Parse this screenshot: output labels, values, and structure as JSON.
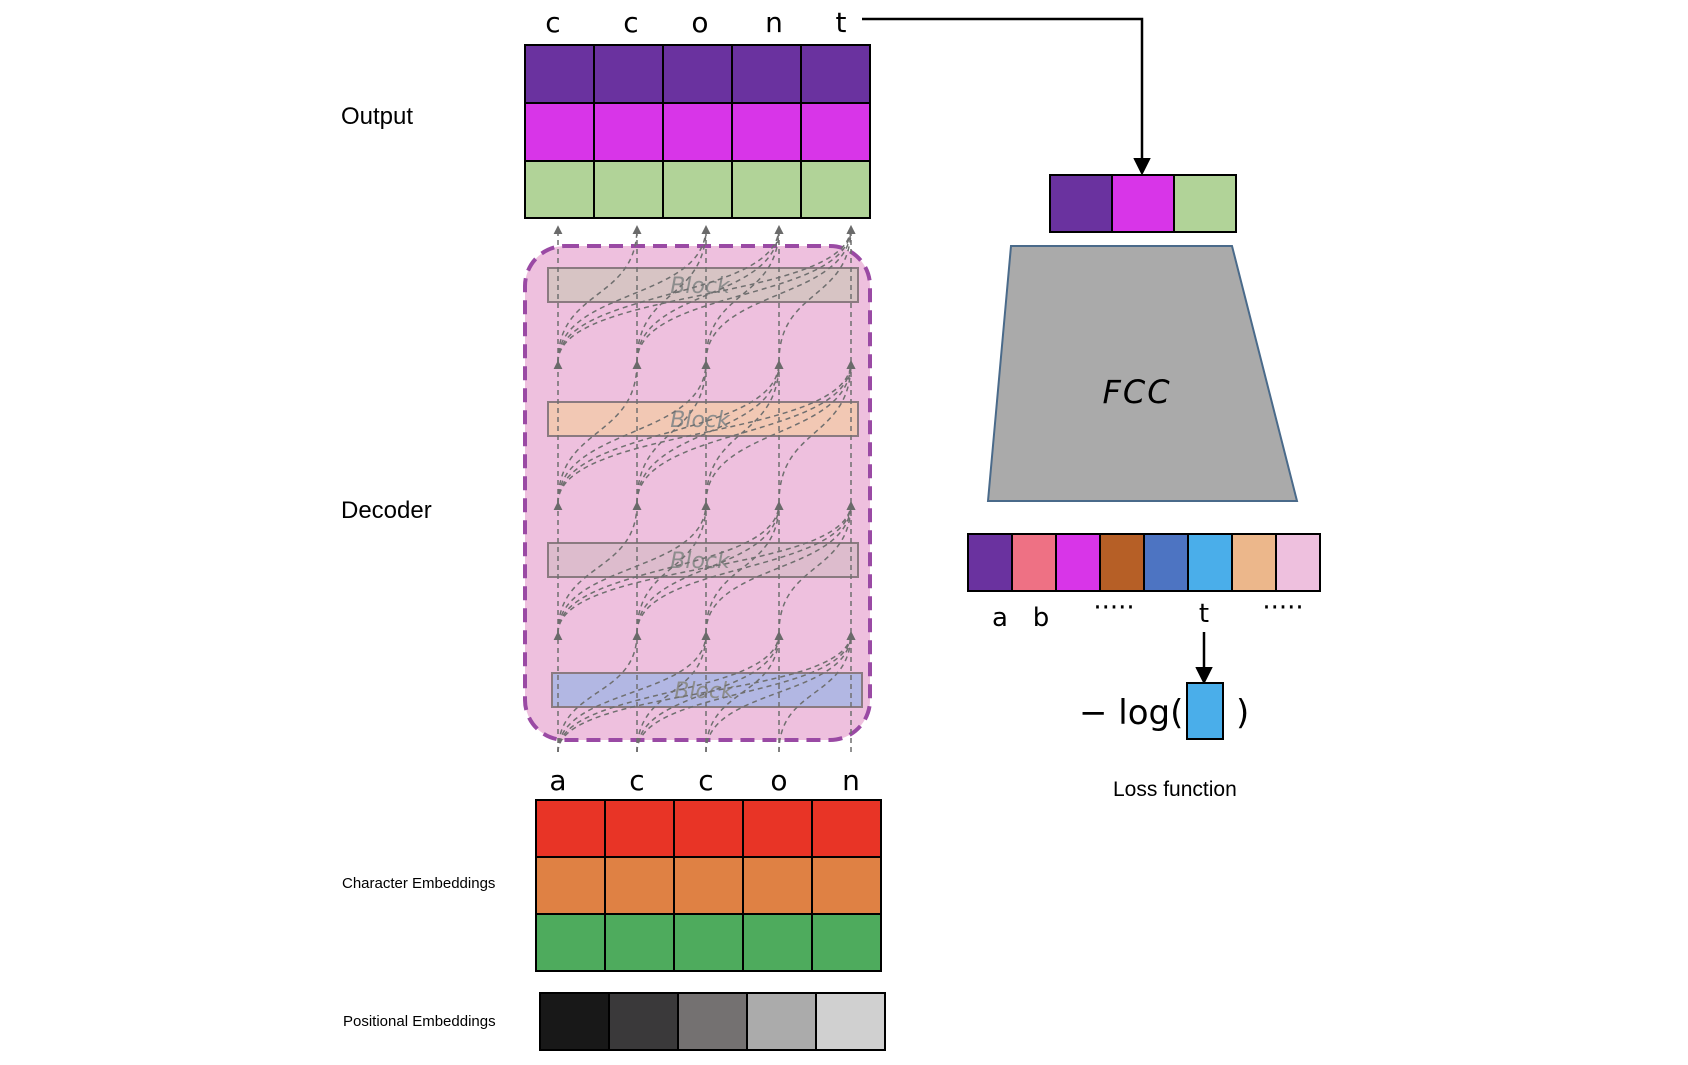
{
  "labels": {
    "output": "Output",
    "decoder": "Decoder",
    "char_embeddings": "Character Embeddings",
    "pos_embeddings": "Positional Embeddings",
    "loss_function": "Loss function",
    "fcc": "FCC",
    "loss_formula_prefix": "− log(",
    "loss_formula_suffix": ")"
  },
  "output_tokens": [
    "c",
    "c",
    "o",
    "n",
    "t"
  ],
  "input_tokens": [
    "a",
    "c",
    "c",
    "o",
    "n"
  ],
  "vocab_labels": [
    "a",
    "b",
    "·····",
    "t",
    "·····"
  ],
  "block_label": "Block",
  "colors": {
    "output_rows": [
      "#6a329f",
      "#d835e8",
      "#b1d398"
    ],
    "char_rows": [
      "#e83426",
      "#df8144",
      "#4eab5d"
    ],
    "positional": [
      "#181818",
      "#3a393a",
      "#747171",
      "#ababab",
      "#d0d0d0"
    ],
    "decoder_bg": "#eec0de",
    "decoder_border": "#9a4aa4",
    "blocks": [
      "#d7c4c4",
      "#f2c8b4",
      "#ddbccd",
      "#b2b7e3"
    ],
    "fcc": "#aaaaaa",
    "fcc_output": [
      "#6a329f",
      "#d835e8",
      "#b1d398"
    ],
    "vocab": [
      "#6a329f",
      "#ee7184",
      "#d835e8",
      "#b65f26",
      "#4d74c2",
      "#4aaeea",
      "#ecb78b",
      "#eec0de"
    ],
    "loss_box": "#4aaeea"
  }
}
